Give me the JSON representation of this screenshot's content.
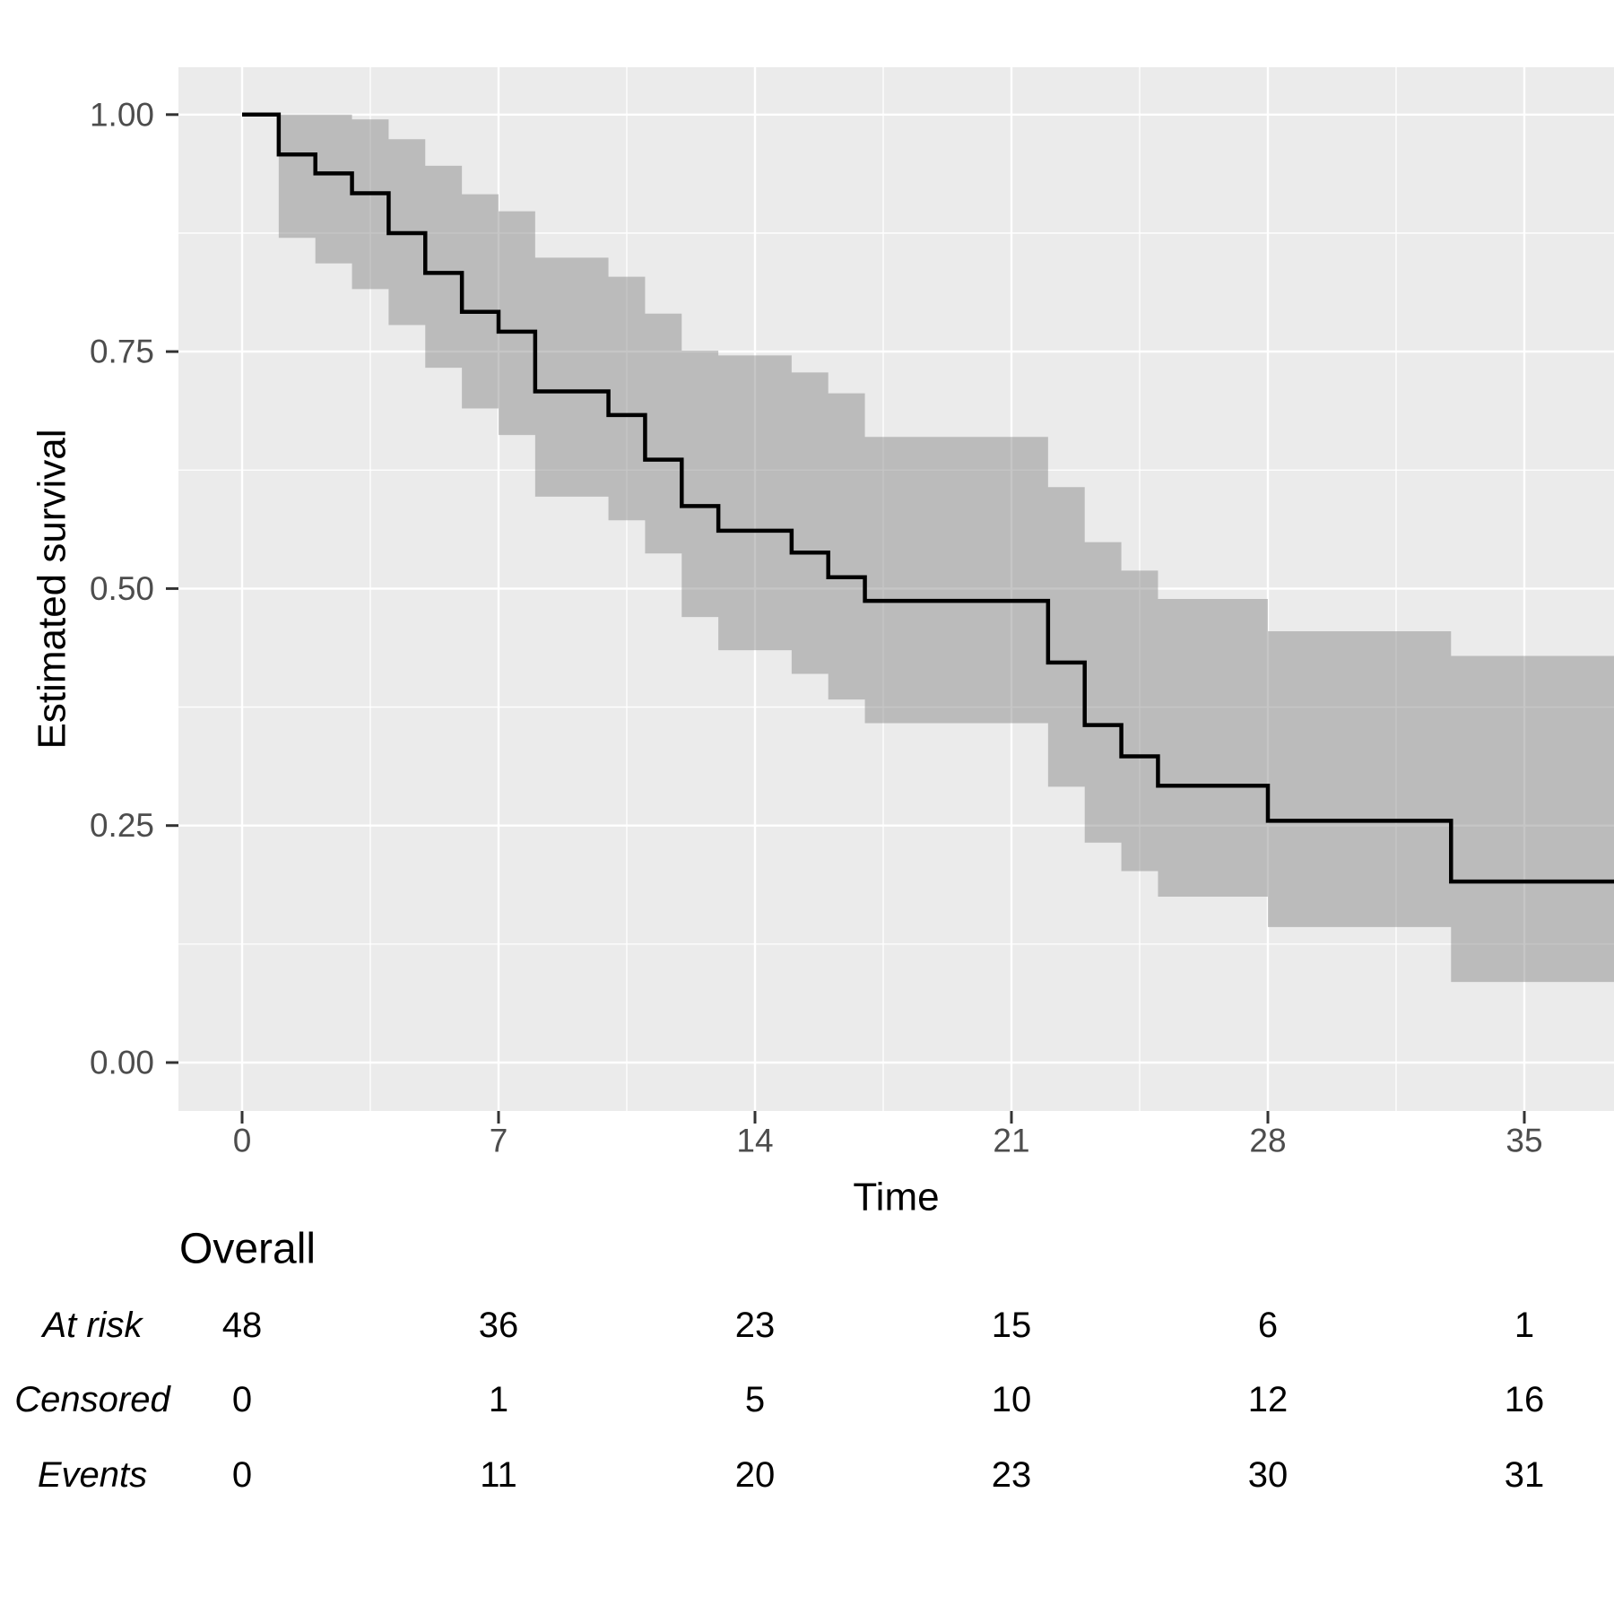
{
  "chart_data": {
    "type": "line",
    "subtype": "kaplan-meier-step-with-confidence-band",
    "title": "",
    "xlabel": "Time",
    "ylabel": "Estimated survival",
    "x_ticks": [
      0,
      7,
      14,
      21,
      28,
      35
    ],
    "x_tick_labels": [
      "0",
      "7",
      "14",
      "21",
      "28",
      "35"
    ],
    "y_ticks": [
      0.0,
      0.25,
      0.5,
      0.75,
      1.0
    ],
    "y_tick_labels": [
      "0.00",
      "0.25",
      "0.50",
      "0.75",
      "1.00"
    ],
    "x_minor_ticks": [
      3.5,
      10.5,
      17.5,
      24.5,
      31.5
    ],
    "y_minor_ticks": [
      0.125,
      0.375,
      0.625,
      0.875
    ],
    "xlim": [
      -1.75,
      37.45
    ],
    "ylim": [
      -0.051,
      1.053
    ],
    "grid": "on",
    "legend": "none",
    "t_end": 37.45,
    "survival_steps": [
      {
        "t": 0,
        "s": 1.0
      },
      {
        "t": 1,
        "s": 0.958
      },
      {
        "t": 2,
        "s": 0.938
      },
      {
        "t": 3,
        "s": 0.917
      },
      {
        "t": 4,
        "s": 0.875
      },
      {
        "t": 5,
        "s": 0.833
      },
      {
        "t": 6,
        "s": 0.792
      },
      {
        "t": 7,
        "s": 0.771
      },
      {
        "t": 8,
        "s": 0.708
      },
      {
        "t": 10,
        "s": 0.683
      },
      {
        "t": 11,
        "s": 0.636
      },
      {
        "t": 12,
        "s": 0.587
      },
      {
        "t": 13,
        "s": 0.561
      },
      {
        "t": 15,
        "s": 0.538
      },
      {
        "t": 16,
        "s": 0.512
      },
      {
        "t": 17,
        "s": 0.487
      },
      {
        "t": 22,
        "s": 0.422
      },
      {
        "t": 23,
        "s": 0.356
      },
      {
        "t": 24,
        "s": 0.323
      },
      {
        "t": 25,
        "s": 0.292
      },
      {
        "t": 28,
        "s": 0.255
      },
      {
        "t": 33,
        "s": 0.191
      }
    ],
    "ci_steps": [
      {
        "t": 1,
        "lo": 0.87,
        "hi": 1.0
      },
      {
        "t": 2,
        "lo": 0.843,
        "hi": 1.0
      },
      {
        "t": 3,
        "lo": 0.816,
        "hi": 0.995
      },
      {
        "t": 4,
        "lo": 0.778,
        "hi": 0.974
      },
      {
        "t": 5,
        "lo": 0.733,
        "hi": 0.946
      },
      {
        "t": 6,
        "lo": 0.69,
        "hi": 0.916
      },
      {
        "t": 7,
        "lo": 0.662,
        "hi": 0.898
      },
      {
        "t": 8,
        "lo": 0.597,
        "hi": 0.849
      },
      {
        "t": 10,
        "lo": 0.572,
        "hi": 0.829
      },
      {
        "t": 11,
        "lo": 0.537,
        "hi": 0.79
      },
      {
        "t": 12,
        "lo": 0.47,
        "hi": 0.751
      },
      {
        "t": 13,
        "lo": 0.435,
        "hi": 0.746
      },
      {
        "t": 15,
        "lo": 0.41,
        "hi": 0.728
      },
      {
        "t": 16,
        "lo": 0.383,
        "hi": 0.706
      },
      {
        "t": 17,
        "lo": 0.358,
        "hi": 0.66
      },
      {
        "t": 22,
        "lo": 0.291,
        "hi": 0.607
      },
      {
        "t": 23,
        "lo": 0.232,
        "hi": 0.549
      },
      {
        "t": 24,
        "lo": 0.202,
        "hi": 0.519
      },
      {
        "t": 25,
        "lo": 0.175,
        "hi": 0.489
      },
      {
        "t": 28,
        "lo": 0.143,
        "hi": 0.455
      },
      {
        "t": 33,
        "lo": 0.085,
        "hi": 0.429
      }
    ],
    "colors": {
      "panel_background": "#ebebeb",
      "gridline": "#ffffff",
      "curve": "#000000",
      "band_fill": "rgba(128,128,128,0.45)",
      "tick_label": "#4d4d4d",
      "tick_mark": "#333333",
      "axis_title": "#000000",
      "table_text": "#000000"
    }
  },
  "risk_table": {
    "title": "Overall",
    "time_points": [
      0,
      7,
      14,
      21,
      28,
      35
    ],
    "rows": [
      {
        "label": "At risk",
        "values": [
          "48",
          "36",
          "23",
          "15",
          "6",
          "1"
        ]
      },
      {
        "label": "Censored",
        "values": [
          "0",
          "1",
          "5",
          "10",
          "12",
          "16"
        ]
      },
      {
        "label": "Events",
        "values": [
          "0",
          "11",
          "20",
          "23",
          "30",
          "31"
        ]
      }
    ]
  }
}
